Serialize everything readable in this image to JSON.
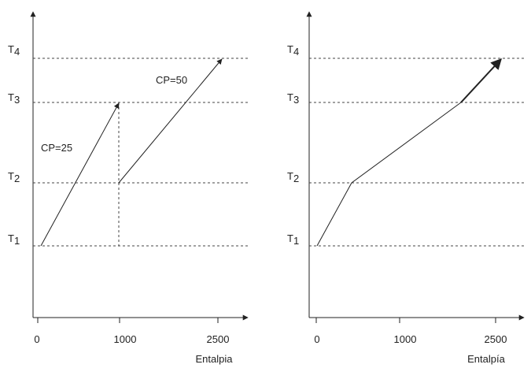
{
  "left_panel": {
    "levels": [
      {
        "base": "T",
        "sub": "4"
      },
      {
        "base": "T",
        "sub": "3"
      },
      {
        "base": "T",
        "sub": "2"
      },
      {
        "base": "T",
        "sub": "1"
      }
    ],
    "ticks": [
      "0",
      "1000",
      "2500"
    ],
    "xlabel": "Entalpia",
    "stream_labels": [
      "CP=25",
      "CP=50"
    ]
  },
  "right_panel": {
    "levels": [
      {
        "base": "T",
        "sub": "4"
      },
      {
        "base": "T",
        "sub": "3"
      },
      {
        "base": "T",
        "sub": "2"
      },
      {
        "base": "T",
        "sub": "1"
      }
    ],
    "ticks": [
      "0",
      "1000",
      "2500"
    ],
    "xlabel": "Entalpía"
  },
  "colors": {
    "ink": "#222222",
    "dashed": "#444444"
  }
}
